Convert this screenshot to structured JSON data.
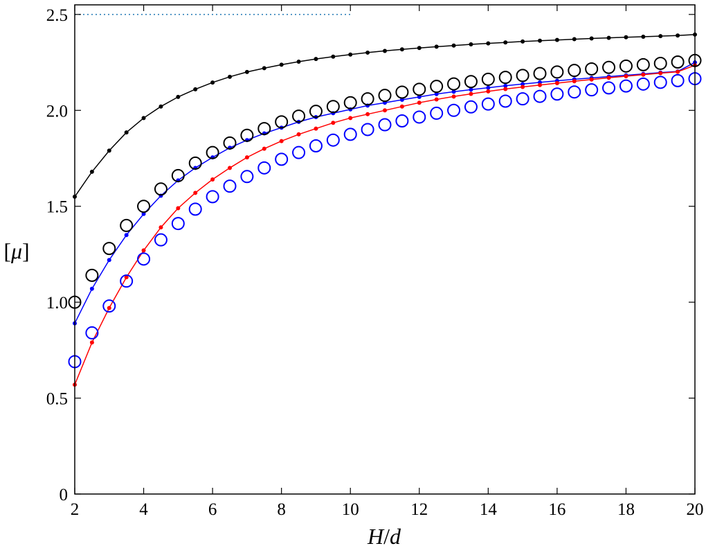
{
  "chart_data": {
    "type": "line",
    "xlabel_parts": [
      "H",
      "/",
      "d"
    ],
    "ylabel_parts": [
      "[",
      "μ",
      "]"
    ],
    "xlim": [
      2,
      20
    ],
    "ylim": [
      0,
      2.55
    ],
    "xticks": [
      "2",
      "4",
      "6",
      "8",
      "10",
      "12",
      "14",
      "16",
      "18",
      "20"
    ],
    "yticks": [
      "0",
      "0.5",
      "1.0",
      "1.5",
      "2.0",
      "2.5"
    ],
    "grid": false,
    "reference_line": {
      "y": 2.5,
      "x_range": [
        2,
        10
      ],
      "color": "#1f77b4",
      "style": "dotted"
    },
    "series": [
      {
        "style": "line-dots",
        "color": "#000000",
        "x": [
          2,
          2.5,
          3,
          3.5,
          4,
          4.5,
          5,
          5.5,
          6,
          6.5,
          7,
          7.5,
          8,
          8.5,
          9,
          9.5,
          10,
          10.5,
          11,
          11.5,
          12,
          12.5,
          13,
          13.5,
          14,
          14.5,
          15,
          15.5,
          16,
          16.5,
          17,
          17.5,
          18,
          18.5,
          19,
          19.5,
          20
        ],
        "y": [
          1.55,
          1.68,
          1.79,
          1.885,
          1.96,
          2.02,
          2.07,
          2.11,
          2.145,
          2.175,
          2.2,
          2.22,
          2.238,
          2.254,
          2.268,
          2.28,
          2.291,
          2.301,
          2.31,
          2.318,
          2.325,
          2.332,
          2.338,
          2.344,
          2.349,
          2.354,
          2.359,
          2.363,
          2.367,
          2.371,
          2.375,
          2.378,
          2.381,
          2.384,
          2.387,
          2.39,
          2.395
        ]
      },
      {
        "style": "line-dots",
        "color": "#0000ff",
        "x": [
          2,
          2.5,
          3,
          3.5,
          4,
          4.5,
          5,
          5.5,
          6,
          6.5,
          7,
          7.5,
          8,
          8.5,
          9,
          9.5,
          10,
          10.5,
          11,
          11.5,
          12,
          12.5,
          13,
          13.5,
          14,
          14.5,
          15,
          15.5,
          16,
          16.5,
          17,
          17.5,
          18,
          18.5,
          19,
          19.5,
          20
        ],
        "y": [
          0.89,
          1.07,
          1.22,
          1.35,
          1.46,
          1.555,
          1.635,
          1.7,
          1.755,
          1.805,
          1.845,
          1.88,
          1.91,
          1.94,
          1.965,
          1.985,
          2.005,
          2.025,
          2.04,
          2.055,
          2.07,
          2.085,
          2.097,
          2.108,
          2.118,
          2.128,
          2.137,
          2.146,
          2.154,
          2.162,
          2.169,
          2.176,
          2.183,
          2.19,
          2.197,
          2.203,
          2.25
        ]
      },
      {
        "style": "line-dots",
        "color": "#ff0000",
        "x": [
          2,
          2.5,
          3,
          3.5,
          4,
          4.5,
          5,
          5.5,
          6,
          6.5,
          7,
          7.5,
          8,
          8.5,
          9,
          9.5,
          10,
          10.5,
          11,
          11.5,
          12,
          12.5,
          13,
          13.5,
          14,
          14.5,
          15,
          15.5,
          16,
          16.5,
          17,
          17.5,
          18,
          18.5,
          19,
          19.5,
          20
        ],
        "y": [
          0.57,
          0.79,
          0.97,
          1.13,
          1.27,
          1.39,
          1.49,
          1.57,
          1.64,
          1.7,
          1.755,
          1.8,
          1.84,
          1.875,
          1.905,
          1.935,
          1.96,
          1.98,
          2.0,
          2.02,
          2.04,
          2.057,
          2.072,
          2.086,
          2.099,
          2.111,
          2.122,
          2.132,
          2.142,
          2.152,
          2.161,
          2.17,
          2.178,
          2.186,
          2.194,
          2.201,
          2.235
        ]
      },
      {
        "style": "open-circles",
        "color": "#000000",
        "x": [
          2,
          2.5,
          3,
          3.5,
          4,
          4.5,
          5,
          5.5,
          6,
          6.5,
          7,
          7.5,
          8,
          8.5,
          9,
          9.5,
          10,
          10.5,
          11,
          11.5,
          12,
          12.5,
          13,
          13.5,
          14,
          14.5,
          15,
          15.5,
          16,
          16.5,
          17,
          17.5,
          18,
          18.5,
          19,
          19.5,
          20
        ],
        "y": [
          1.0,
          1.14,
          1.28,
          1.4,
          1.5,
          1.59,
          1.66,
          1.725,
          1.78,
          1.83,
          1.87,
          1.905,
          1.94,
          1.97,
          1.995,
          2.02,
          2.04,
          2.06,
          2.078,
          2.095,
          2.11,
          2.125,
          2.138,
          2.15,
          2.162,
          2.172,
          2.182,
          2.192,
          2.2,
          2.208,
          2.216,
          2.224,
          2.231,
          2.238,
          2.245,
          2.252,
          2.26
        ]
      },
      {
        "style": "open-circles",
        "color": "#0000ff",
        "x": [
          2,
          2.5,
          3,
          3.5,
          4,
          4.5,
          5,
          5.5,
          6,
          6.5,
          7,
          7.5,
          8,
          8.5,
          9,
          9.5,
          10,
          10.5,
          11,
          11.5,
          12,
          12.5,
          13,
          13.5,
          14,
          14.5,
          15,
          15.5,
          16,
          16.5,
          17,
          17.5,
          18,
          18.5,
          19,
          19.5,
          20
        ],
        "y": [
          0.69,
          0.84,
          0.98,
          1.11,
          1.225,
          1.325,
          1.41,
          1.485,
          1.55,
          1.605,
          1.655,
          1.7,
          1.745,
          1.78,
          1.815,
          1.845,
          1.875,
          1.9,
          1.925,
          1.945,
          1.965,
          1.985,
          2.0,
          2.018,
          2.033,
          2.048,
          2.06,
          2.073,
          2.085,
          2.096,
          2.107,
          2.117,
          2.127,
          2.137,
          2.146,
          2.155,
          2.165
        ]
      }
    ]
  }
}
